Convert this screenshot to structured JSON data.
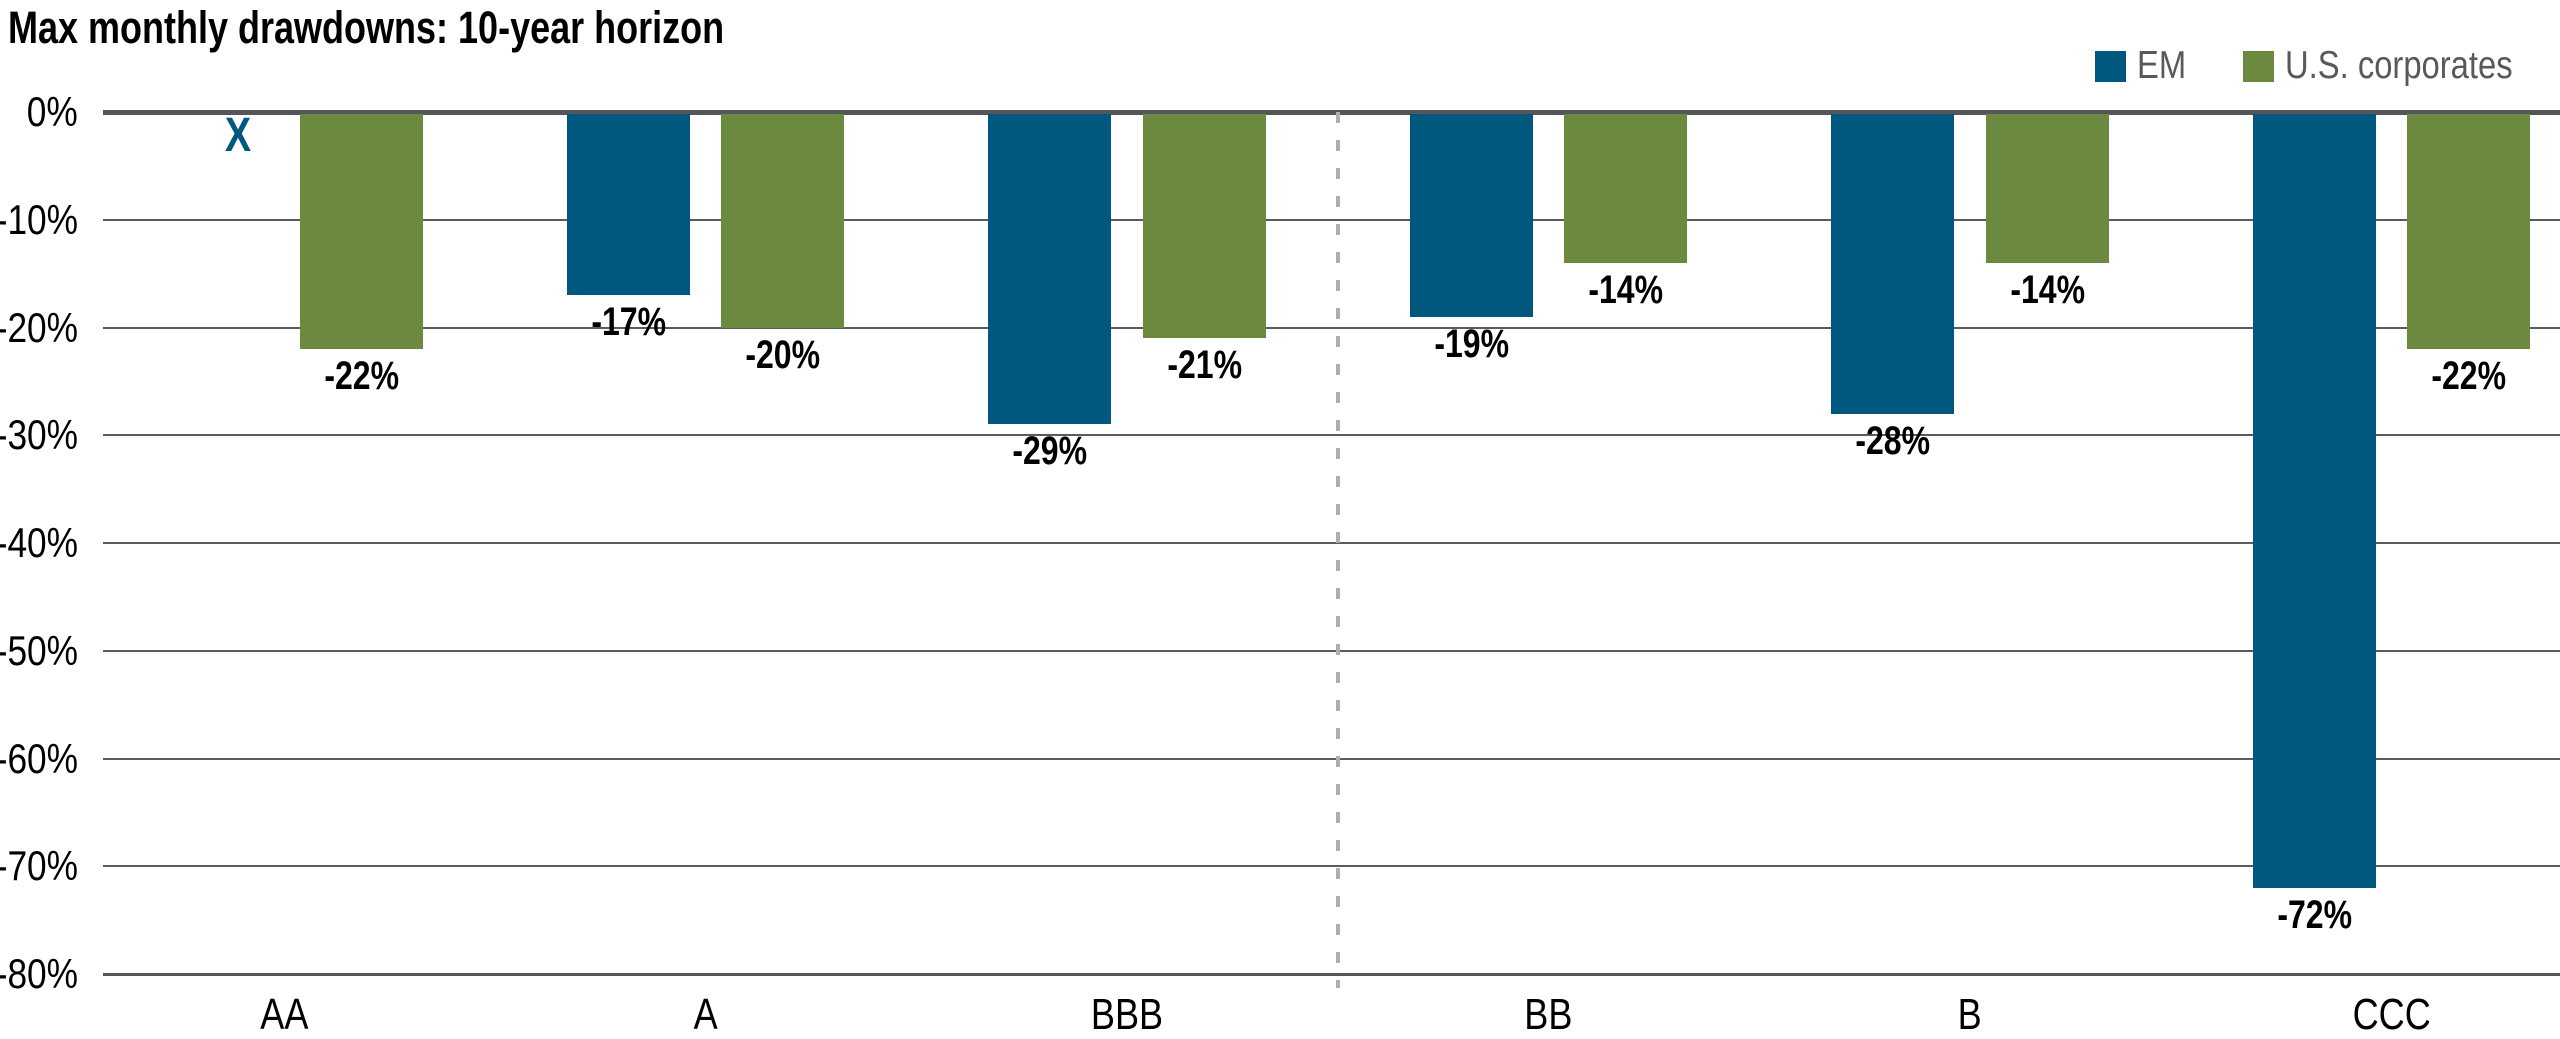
{
  "title": "Max monthly drawdowns: 10-year horizon",
  "legend": {
    "items": [
      {
        "label": "EM",
        "color": "#00587E"
      },
      {
        "label": "U.S. corporates",
        "color": "#6B8A3F"
      }
    ]
  },
  "chart_data": {
    "type": "bar",
    "title": "Max monthly drawdowns: 10-year horizon",
    "categories": [
      "AA",
      "A",
      "BBB",
      "BB",
      "B",
      "CCC"
    ],
    "series": [
      {
        "name": "EM",
        "color": "#00587E",
        "values": [
          null,
          -17,
          -29,
          -19,
          -28,
          -72
        ],
        "labels": [
          "",
          "-17%",
          "-29%",
          "-19%",
          "-28%",
          "-72%"
        ]
      },
      {
        "name": "U.S. corporates",
        "color": "#6B8A3F",
        "values": [
          -22,
          -20,
          -21,
          -14,
          -14,
          -22
        ],
        "labels": [
          "-22%",
          "-20%",
          "-21%",
          "-14%",
          "-14%",
          "-22%"
        ]
      }
    ],
    "missing_data": {
      "category": "AA",
      "series": "EM",
      "marker": "X"
    },
    "ylim": [
      -80,
      0
    ],
    "yticks": [
      0,
      -10,
      -20,
      -30,
      -40,
      -50,
      -60,
      -70,
      -80
    ],
    "ytick_labels": [
      "0%",
      "-10%",
      "-20%",
      "-30%",
      "-40%",
      "-50%",
      "-60%",
      "-70%",
      "-80%"
    ],
    "grid": true,
    "legend_position": "top-right",
    "separator": {
      "type": "dashed-vertical",
      "between": [
        "BBB",
        "BB"
      ]
    }
  },
  "colors": {
    "em_blue": "#00587E",
    "us_green": "#6B8A3F",
    "axis_line": "#54565A",
    "gridline": "#595B5F",
    "dashed_separator": "#ADAFB2",
    "legend_text": "#58595B",
    "label_text": "#000000"
  }
}
